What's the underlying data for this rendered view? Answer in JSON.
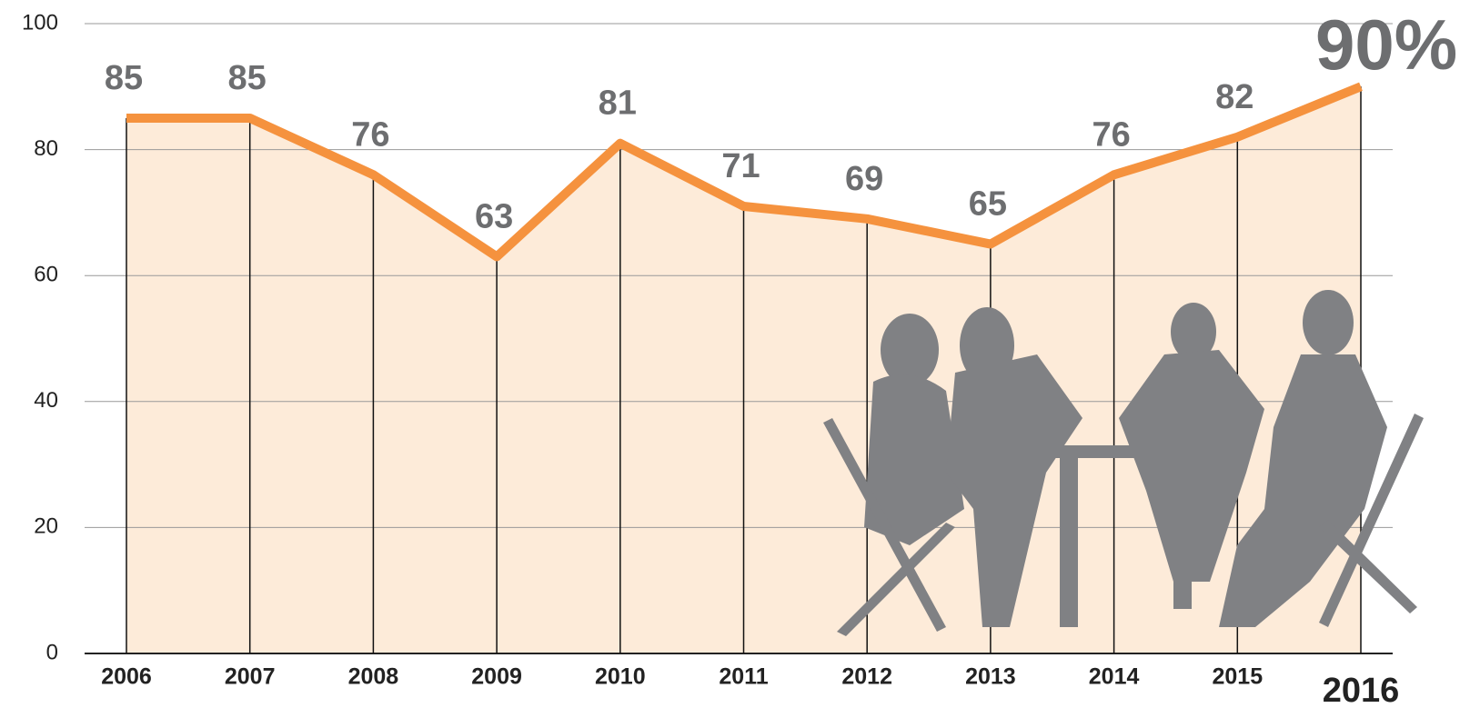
{
  "chart_data": {
    "type": "line",
    "x": [
      2006,
      2007,
      2008,
      2009,
      2010,
      2011,
      2012,
      2013,
      2014,
      2015,
      2016
    ],
    "values": [
      85,
      85,
      76,
      63,
      81,
      71,
      69,
      65,
      76,
      82,
      90
    ],
    "value_labels": [
      "85",
      "85",
      "76",
      "63",
      "81",
      "71",
      "69",
      "65",
      "76",
      "82",
      "90%"
    ],
    "color": "#f5923e",
    "area_color": "#fdebd9",
    "xlim": [
      2006,
      2016
    ],
    "ylim": [
      0,
      100
    ],
    "yticks": [
      0,
      20,
      40,
      60,
      80,
      100
    ],
    "grid": true
  }
}
